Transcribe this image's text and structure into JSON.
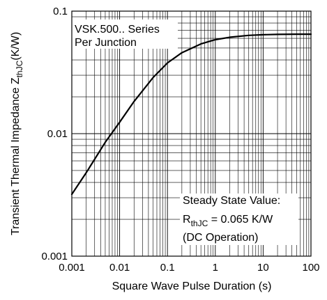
{
  "chart_data": {
    "type": "line",
    "title": "",
    "xlabel": "Square Wave Pulse Duration (s)",
    "ylabel": {
      "main": "Transient Thermal Impedance Z",
      "sub": "thJC",
      "unit": "(K/W)"
    },
    "x_scale": "log",
    "y_scale": "log",
    "xlim": [
      0.001,
      100
    ],
    "ylim": [
      0.001,
      0.1
    ],
    "x_ticks": [
      "0.001",
      "0.01",
      "0.1",
      "1",
      "10",
      "100"
    ],
    "y_ticks": [
      "0.001",
      "0.01",
      "0.1"
    ],
    "grid": true,
    "series": [
      {
        "x": [
          0.001,
          0.002,
          0.005,
          0.01,
          0.02,
          0.05,
          0.1,
          0.2,
          0.5,
          1,
          2,
          5,
          10,
          20,
          50,
          100
        ],
        "y": [
          0.0032,
          0.0048,
          0.0085,
          0.0124,
          0.0183,
          0.0287,
          0.0378,
          0.0458,
          0.054,
          0.0585,
          0.0612,
          0.0634,
          0.0642,
          0.0646,
          0.0648,
          0.0648
        ]
      }
    ],
    "annotations": {
      "box_top": [
        "VSK.500.. Series",
        "Per Junction"
      ],
      "box_bottom": {
        "line1": "Steady State Value:",
        "line2_main": "R",
        "line2_sub": "thJC",
        "line2_rest": " = 0.065 K/W",
        "line3": "(DC Operation)"
      }
    }
  },
  "colors": {
    "line": "#000000",
    "grid": "#000000",
    "background": "#ffffff"
  }
}
